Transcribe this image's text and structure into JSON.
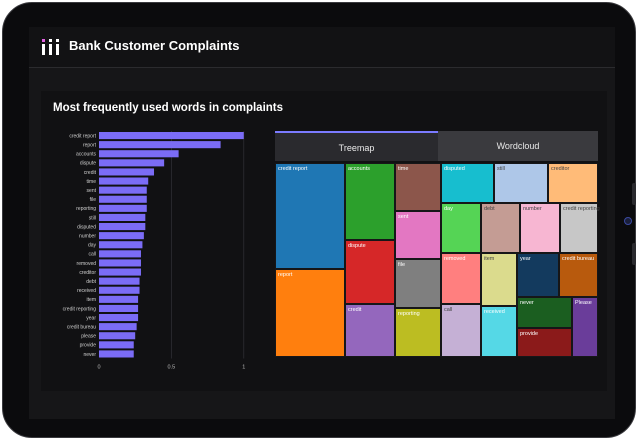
{
  "app": {
    "title": "Bank Customer Complaints"
  },
  "section": {
    "title": "Most frequently used words in complaints"
  },
  "tabs": {
    "treemap": "Treemap",
    "wordcloud": "Wordcloud"
  },
  "chart_data": [
    {
      "type": "bar",
      "orientation": "horizontal",
      "categories": [
        "credit report",
        "report",
        "accounts",
        "dispute",
        "credit",
        "time",
        "sent",
        "file",
        "reporting",
        "still",
        "disputed",
        "number",
        "day",
        "call",
        "removed",
        "creditor",
        "debt",
        "received",
        "item",
        "credit reporting",
        "year",
        "credit bureau",
        "please",
        "provide",
        "never"
      ],
      "values": [
        1.0,
        0.84,
        0.55,
        0.45,
        0.38,
        0.34,
        0.33,
        0.33,
        0.33,
        0.32,
        0.32,
        0.31,
        0.3,
        0.29,
        0.29,
        0.29,
        0.28,
        0.28,
        0.27,
        0.27,
        0.27,
        0.26,
        0.25,
        0.24,
        0.24
      ],
      "xticks": [
        "0",
        "0.5",
        "1"
      ],
      "xlim": [
        0,
        1.05
      ],
      "color": "#7b6cf6",
      "grid": "vertical"
    },
    {
      "type": "treemap",
      "items": [
        {
          "label": "credit report",
          "color": "#1f77b4"
        },
        {
          "label": "report",
          "color": "#ff7f0e"
        },
        {
          "label": "accounts",
          "color": "#2ca02c"
        },
        {
          "label": "dispute",
          "color": "#d62728"
        },
        {
          "label": "credit",
          "color": "#9467bd"
        },
        {
          "label": "time",
          "color": "#8c564b"
        },
        {
          "label": "sent",
          "color": "#e377c2"
        },
        {
          "label": "file",
          "color": "#7f7f7f"
        },
        {
          "label": "reporting",
          "color": "#bcbd22"
        },
        {
          "label": "disputed",
          "color": "#17becf"
        },
        {
          "label": "still",
          "color": "#aec7e8"
        },
        {
          "label": "creditor",
          "color": "#ffbb78"
        },
        {
          "label": "day",
          "color": "#55d455"
        },
        {
          "label": "debt",
          "color": "#c49c94"
        },
        {
          "label": "number",
          "color": "#f7b6d2"
        },
        {
          "label": "credit reporting",
          "color": "#c7c7c7"
        },
        {
          "label": "removed",
          "color": "#ff7f7f"
        },
        {
          "label": "item",
          "color": "#dbdb8d"
        },
        {
          "label": "year",
          "color": "#133a5e"
        },
        {
          "label": "credit bureau",
          "color": "#b85a0d"
        },
        {
          "label": "call",
          "color": "#c5b0d5"
        },
        {
          "label": "received",
          "color": "#55d8e6"
        },
        {
          "label": "never",
          "color": "#1b5e20"
        },
        {
          "label": "provide",
          "color": "#8b1a1a"
        },
        {
          "label": "Please",
          "color": "#6a3d9a"
        }
      ]
    }
  ]
}
